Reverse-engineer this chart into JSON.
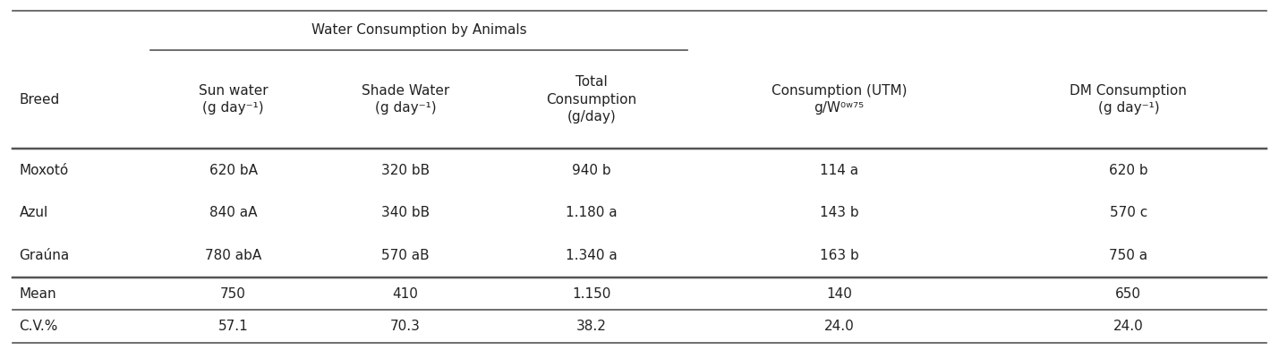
{
  "title": "Water Consumption by Animals",
  "col_headers": [
    "Breed",
    "Sun water\n(g day⁻¹)",
    "Shade Water\n(g day⁻¹)",
    "Total\nConsumption\n(g/day)",
    "Consumption (UTM)\ng/W⁰ʷ⁷⁵",
    "DM Consumption\n(g day⁻¹)"
  ],
  "data_rows": [
    [
      "Moxotó",
      "620 bA",
      "320 bB",
      "940 b",
      "114 a",
      "620 b"
    ],
    [
      "Azul",
      "840 aA",
      "340 bB",
      "1.180 a",
      "143 b",
      "570 c"
    ],
    [
      "Graúna",
      "780 abA",
      "570 aB",
      "1.340 a",
      "163 b",
      "750 a"
    ]
  ],
  "mean_row": [
    "Mean",
    "750",
    "410",
    "1.150",
    "140",
    "650"
  ],
  "cv_row": [
    "C.V.%",
    "57.1",
    "70.3",
    "38.2",
    "24.0",
    "24.0"
  ],
  "bg_color": "#f0f0f0",
  "text_color": "#222222",
  "header_span_cols": [
    1,
    4
  ],
  "figsize": [
    14.29,
    3.91
  ],
  "dpi": 100
}
